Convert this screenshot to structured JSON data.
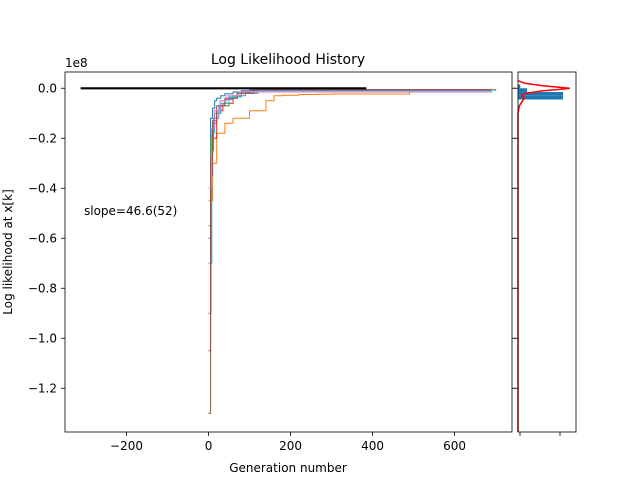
{
  "chart_data": [
    {
      "type": "line",
      "title": "Log Likelihood History",
      "xlabel": "Generation number",
      "ylabel": "Log likelihood at x[k]",
      "y_multiplier_label": "1e8",
      "annotation": "slope=46.6(52)",
      "xlim": [
        -350,
        740
      ],
      "ylim": [
        -1.375,
        0.065
      ],
      "xticks": [
        -200,
        0,
        200,
        400,
        600
      ],
      "xtick_labels": [
        "−200",
        "0",
        "200",
        "400",
        "600"
      ],
      "yticks": [
        0.0,
        -0.2,
        -0.4,
        -0.6,
        -0.8,
        -1.0,
        -1.2
      ],
      "ytick_labels": [
        "0.0",
        "−0.2",
        "−0.4",
        "−0.6",
        "−0.8",
        "−1.0",
        "−1.2"
      ],
      "grid": false,
      "series": [
        {
          "color": "#1f77b4",
          "x": [
            0,
            5,
            10,
            15,
            20,
            30,
            40,
            60,
            80,
            100,
            700
          ],
          "y": [
            -0.6,
            -0.12,
            -0.08,
            -0.05,
            -0.04,
            -0.03,
            -0.022,
            -0.015,
            -0.01,
            -0.006,
            -0.003
          ]
        },
        {
          "color": "#ff7f0e",
          "x": [
            0,
            10,
            20,
            40,
            60,
            100,
            140,
            160,
            180,
            220,
            260,
            300,
            490,
            700
          ],
          "y": [
            -0.45,
            -0.3,
            -0.18,
            -0.14,
            -0.12,
            -0.09,
            -0.05,
            -0.03,
            -0.028,
            -0.025,
            -0.024,
            -0.023,
            -0.006,
            -0.002
          ]
        },
        {
          "color": "#2ca02c",
          "x": [
            0,
            5,
            10,
            20,
            30,
            50,
            70,
            100,
            690
          ],
          "y": [
            -0.55,
            -0.2,
            -0.14,
            -0.1,
            -0.07,
            -0.04,
            -0.02,
            -0.008,
            -0.002
          ]
        },
        {
          "color": "#d62728",
          "x": [
            0,
            5,
            10,
            20,
            35,
            60,
            80,
            120,
            690
          ],
          "y": [
            -1.05,
            -0.35,
            -0.2,
            -0.09,
            -0.06,
            -0.035,
            -0.02,
            -0.006,
            -0.002
          ]
        },
        {
          "color": "#9467bd",
          "x": [
            0,
            6,
            12,
            25,
            40,
            60,
            90,
            690
          ],
          "y": [
            -0.9,
            -0.25,
            -0.12,
            -0.07,
            -0.045,
            -0.03,
            -0.01,
            -0.002
          ]
        },
        {
          "color": "#17becf",
          "x": [
            0,
            8,
            15,
            30,
            50,
            80,
            120,
            700
          ],
          "y": [
            -0.7,
            -0.18,
            -0.1,
            -0.06,
            -0.035,
            -0.02,
            -0.008,
            -0.004
          ]
        },
        {
          "color": "#8c564b",
          "x": [
            0,
            5,
            10,
            20,
            40,
            70,
            110,
            690
          ],
          "y": [
            -1.3,
            -0.28,
            -0.13,
            -0.07,
            -0.04,
            -0.02,
            -0.006,
            -0.002
          ]
        },
        {
          "color": "#e377c2",
          "x": [
            0,
            7,
            14,
            28,
            45,
            75,
            690
          ],
          "y": [
            -0.4,
            -0.16,
            -0.09,
            -0.05,
            -0.03,
            -0.015,
            -0.002
          ]
        },
        {
          "color": "#000000",
          "x": [
            -312,
            385
          ],
          "y": [
            0.0,
            0.0
          ]
        }
      ]
    },
    {
      "type": "bar",
      "orientation": "horizontal",
      "bar_color": "#1f77b4",
      "curve_color": "#ff0000",
      "bins_y": [
        0.015,
        0.0,
        -0.015,
        -0.03
      ],
      "counts": [
        0.05,
        0.2,
        1.0,
        1.0
      ],
      "ylim": [
        -1.375,
        0.065
      ],
      "xtick_labels": [
        "",
        ""
      ],
      "curve": {
        "y": [
          0.03,
          0.02,
          0.01,
          0.005,
          0.0,
          -0.005,
          -0.01,
          -0.02,
          -0.03,
          -0.04,
          -0.05,
          -0.07,
          -0.1,
          -0.3,
          -1.375
        ],
        "x": [
          0.0,
          0.15,
          0.55,
          0.85,
          1.15,
          0.9,
          0.55,
          0.18,
          0.08,
          0.14,
          0.1,
          0.03,
          0.0,
          0.0,
          0.0
        ]
      }
    }
  ]
}
